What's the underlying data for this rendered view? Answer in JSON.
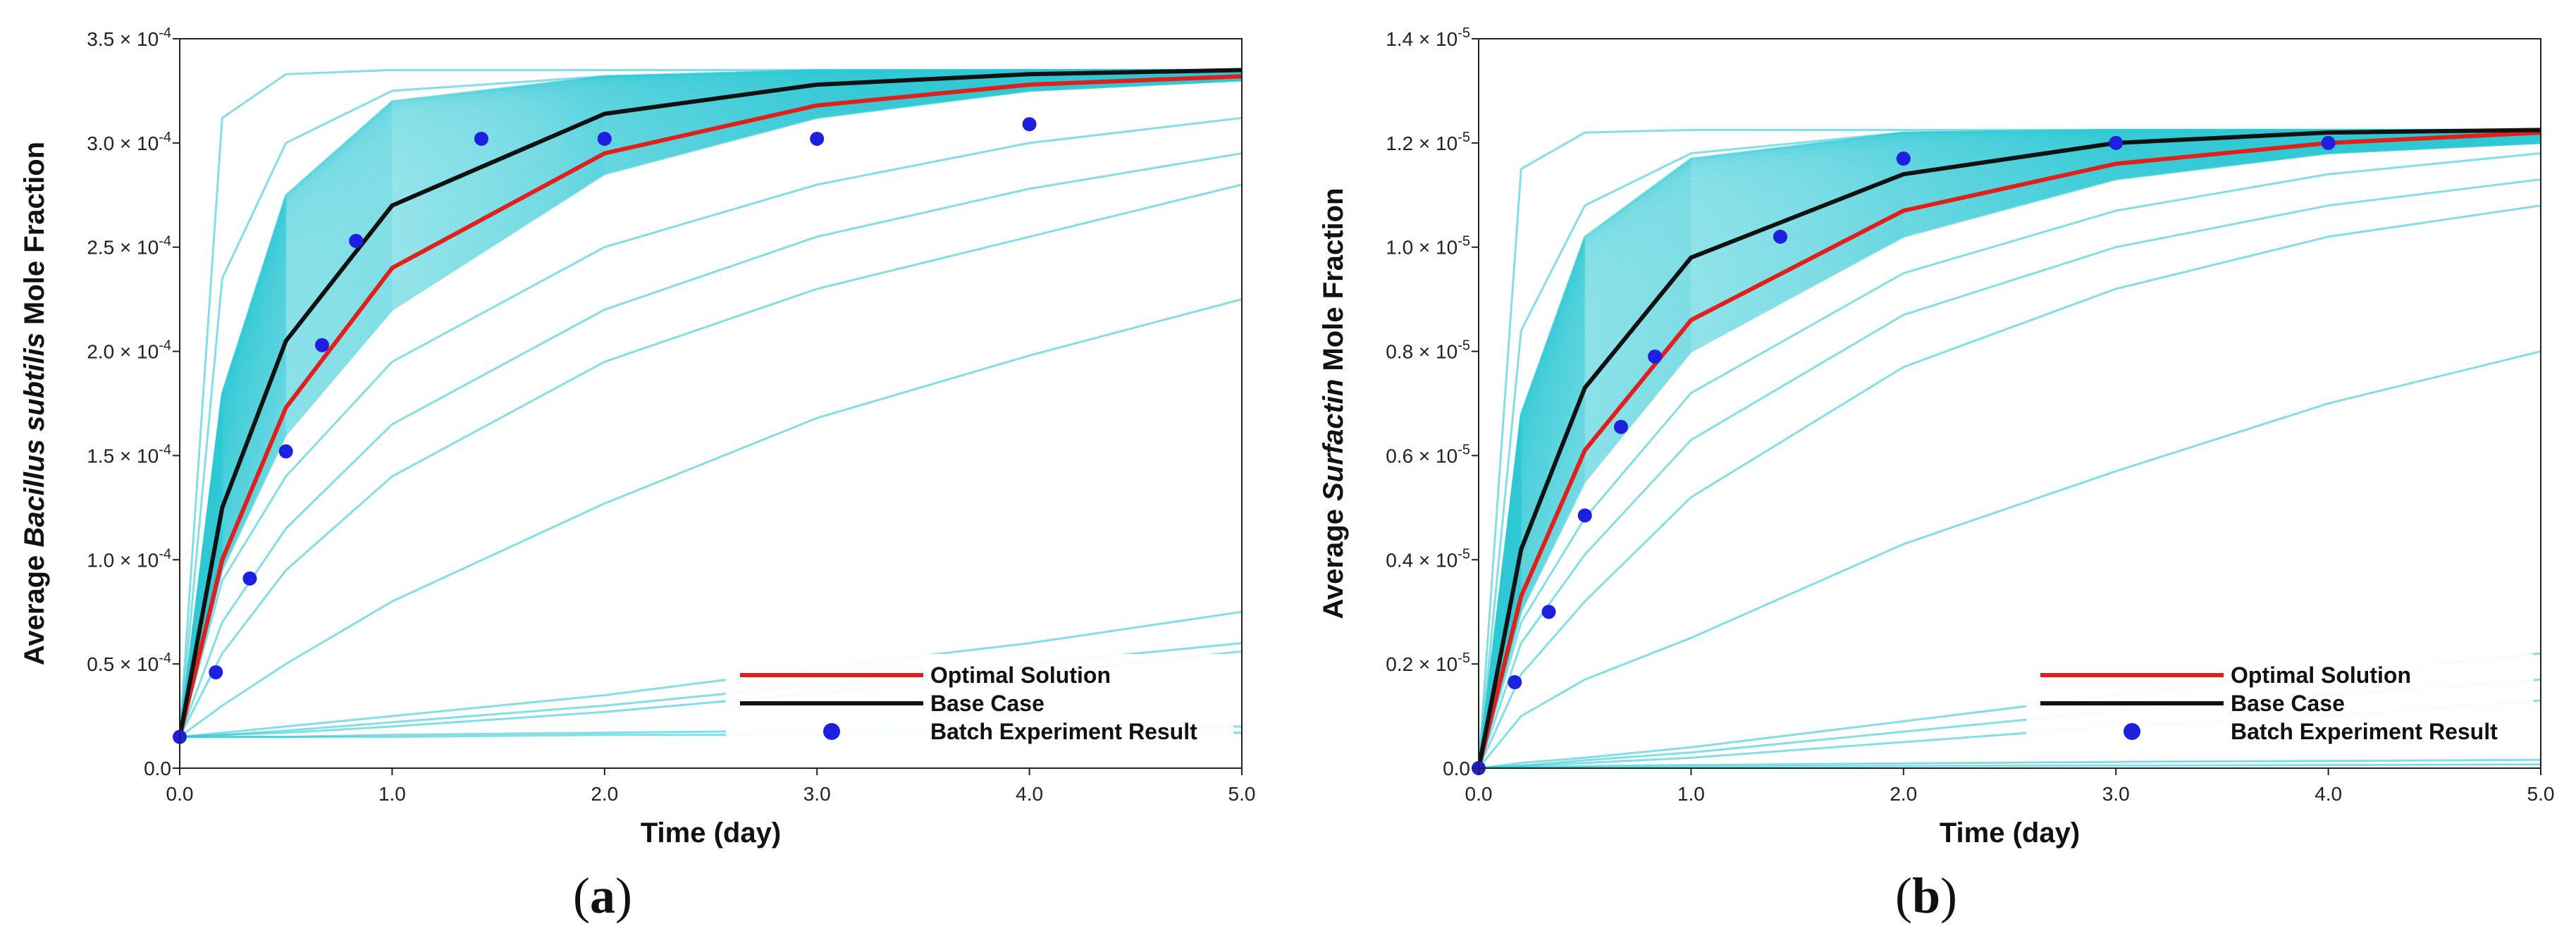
{
  "chart_data": [
    {
      "type": "line",
      "panel_label": "(a)",
      "panel_letter": "a",
      "xlabel": "Time (day)",
      "ylabel": {
        "prefix": "Average ",
        "italic": "Bacillus subtilis",
        "suffix": " Mole Fraction"
      },
      "xlim": [
        0,
        5
      ],
      "ylim": [
        0,
        3.5
      ],
      "y_exponent": "-4",
      "x_ticks": [
        "0.0",
        "1.0",
        "2.0",
        "3.0",
        "4.0",
        "5.0"
      ],
      "x_tick_values": [
        0,
        1,
        2,
        3,
        4,
        5
      ],
      "y_ticks": [
        "0.0",
        "0.5",
        "1.0",
        "1.5",
        "2.0",
        "2.5",
        "3.0",
        "3.5"
      ],
      "y_tick_values": [
        0,
        0.5,
        1.0,
        1.5,
        2.0,
        2.5,
        3.0,
        3.5
      ],
      "x": [
        0,
        0.2,
        0.5,
        1,
        2,
        3,
        4,
        5
      ],
      "series": [
        {
          "name": "Optimal Solution",
          "color": "#e0201b",
          "values": [
            0.15,
            1.0,
            1.73,
            2.4,
            2.95,
            3.18,
            3.28,
            3.32
          ]
        },
        {
          "name": "Base Case",
          "color": "#111111",
          "values": [
            0.15,
            1.25,
            2.05,
            2.7,
            3.14,
            3.28,
            3.33,
            3.35
          ]
        }
      ],
      "scatter": {
        "name": "Batch Experiment Result",
        "color": "#1f1fe0",
        "x": [
          0,
          0.17,
          0.33,
          0.5,
          0.67,
          0.83,
          1.42,
          2.0,
          3.0,
          4.0
        ],
        "y": [
          0.15,
          0.46,
          0.91,
          1.52,
          2.03,
          2.53,
          3.02,
          3.02,
          3.02,
          3.09
        ]
      },
      "ensemble": {
        "color": "#2fc9d6",
        "band_count": 90,
        "band_fast": [
          0.15,
          1.8,
          2.75,
          3.2,
          3.32,
          3.35,
          3.35,
          3.35
        ],
        "band_slow": [
          0.15,
          0.95,
          1.6,
          2.2,
          2.85,
          3.12,
          3.25,
          3.3
        ],
        "outliers": [
          [
            0.15,
            3.12,
            3.33,
            3.35,
            3.35,
            3.35,
            3.35,
            3.35
          ],
          [
            0.15,
            2.35,
            3.0,
            3.25,
            3.32,
            3.34,
            3.35,
            3.35
          ],
          [
            0.15,
            0.9,
            1.4,
            1.95,
            2.5,
            2.8,
            3.0,
            3.12
          ],
          [
            0.15,
            0.7,
            1.15,
            1.65,
            2.2,
            2.55,
            2.78,
            2.95
          ],
          [
            0.15,
            0.55,
            0.95,
            1.4,
            1.95,
            2.3,
            2.55,
            2.8
          ],
          [
            0.15,
            0.3,
            0.5,
            0.8,
            1.27,
            1.68,
            1.98,
            2.25
          ],
          [
            0.15,
            0.17,
            0.2,
            0.25,
            0.35,
            0.48,
            0.6,
            0.75
          ],
          [
            0.15,
            0.16,
            0.18,
            0.22,
            0.3,
            0.4,
            0.5,
            0.6
          ],
          [
            0.15,
            0.16,
            0.17,
            0.2,
            0.27,
            0.36,
            0.45,
            0.56
          ],
          [
            0.15,
            0.15,
            0.15,
            0.16,
            0.17,
            0.18,
            0.19,
            0.2
          ],
          [
            0.15,
            0.15,
            0.15,
            0.15,
            0.16,
            0.16,
            0.17,
            0.17
          ]
        ]
      },
      "legend": {
        "placement": "bottom-right",
        "items": [
          "Optimal Solution",
          "Base Case",
          "Batch Experiment Result"
        ]
      }
    },
    {
      "type": "line",
      "panel_label": "(b)",
      "panel_letter": "b",
      "xlabel": "Time (day)",
      "ylabel": {
        "prefix": "Average ",
        "italic": "Surfactin",
        "suffix": " Mole Fraction"
      },
      "xlim": [
        0,
        5
      ],
      "ylim": [
        0,
        1.4
      ],
      "y_exponent": "-5",
      "x_ticks": [
        "0.0",
        "1.0",
        "2.0",
        "3.0",
        "4.0",
        "5.0"
      ],
      "x_tick_values": [
        0,
        1,
        2,
        3,
        4,
        5
      ],
      "y_ticks": [
        "0.0",
        "0.2",
        "0.4",
        "0.6",
        "0.8",
        "1.0",
        "1.2",
        "1.4"
      ],
      "y_tick_values": [
        0,
        0.2,
        0.4,
        0.6,
        0.8,
        1.0,
        1.2,
        1.4
      ],
      "x": [
        0,
        0.2,
        0.5,
        1,
        2,
        3,
        4,
        5
      ],
      "series": [
        {
          "name": "Optimal Solution",
          "color": "#e0201b",
          "values": [
            0.0,
            0.33,
            0.61,
            0.86,
            1.07,
            1.16,
            1.2,
            1.22
          ]
        },
        {
          "name": "Base Case",
          "color": "#111111",
          "values": [
            0.0,
            0.42,
            0.73,
            0.98,
            1.14,
            1.2,
            1.22,
            1.225
          ]
        }
      ],
      "scatter": {
        "name": "Batch Experiment Result",
        "color": "#1f1fe0",
        "x": [
          0,
          0.17,
          0.33,
          0.5,
          0.67,
          0.83,
          1.42,
          2.0,
          3.0,
          4.0
        ],
        "y": [
          0.0,
          0.165,
          0.3,
          0.485,
          0.655,
          0.79,
          1.02,
          1.17,
          1.2,
          1.2
        ]
      },
      "ensemble": {
        "color": "#2fc9d6",
        "band_count": 90,
        "band_fast": [
          0.0,
          0.68,
          1.02,
          1.17,
          1.22,
          1.225,
          1.225,
          1.225
        ],
        "band_slow": [
          0.0,
          0.3,
          0.55,
          0.8,
          1.02,
          1.13,
          1.18,
          1.2
        ],
        "outliers": [
          [
            0.0,
            1.15,
            1.22,
            1.225,
            1.225,
            1.225,
            1.225,
            1.225
          ],
          [
            0.0,
            0.84,
            1.08,
            1.18,
            1.22,
            1.225,
            1.225,
            1.225
          ],
          [
            0.0,
            0.28,
            0.48,
            0.72,
            0.95,
            1.07,
            1.14,
            1.18
          ],
          [
            0.0,
            0.24,
            0.41,
            0.63,
            0.87,
            1.0,
            1.08,
            1.13
          ],
          [
            0.0,
            0.18,
            0.32,
            0.52,
            0.77,
            0.92,
            1.02,
            1.08
          ],
          [
            0.0,
            0.1,
            0.17,
            0.25,
            0.43,
            0.57,
            0.7,
            0.8
          ],
          [
            0.0,
            0.01,
            0.02,
            0.04,
            0.09,
            0.14,
            0.18,
            0.22
          ],
          [
            0.0,
            0.005,
            0.015,
            0.03,
            0.07,
            0.11,
            0.14,
            0.17
          ],
          [
            0.0,
            0.004,
            0.01,
            0.02,
            0.05,
            0.08,
            0.1,
            0.13
          ],
          [
            0.0,
            0.002,
            0.004,
            0.006,
            0.009,
            0.012,
            0.014,
            0.016
          ],
          [
            0.0,
            0.001,
            0.002,
            0.003,
            0.004,
            0.005,
            0.006,
            0.007
          ]
        ]
      },
      "legend": {
        "placement": "bottom-right",
        "items": [
          "Optimal Solution",
          "Base Case",
          "Batch Experiment Result"
        ]
      }
    }
  ]
}
